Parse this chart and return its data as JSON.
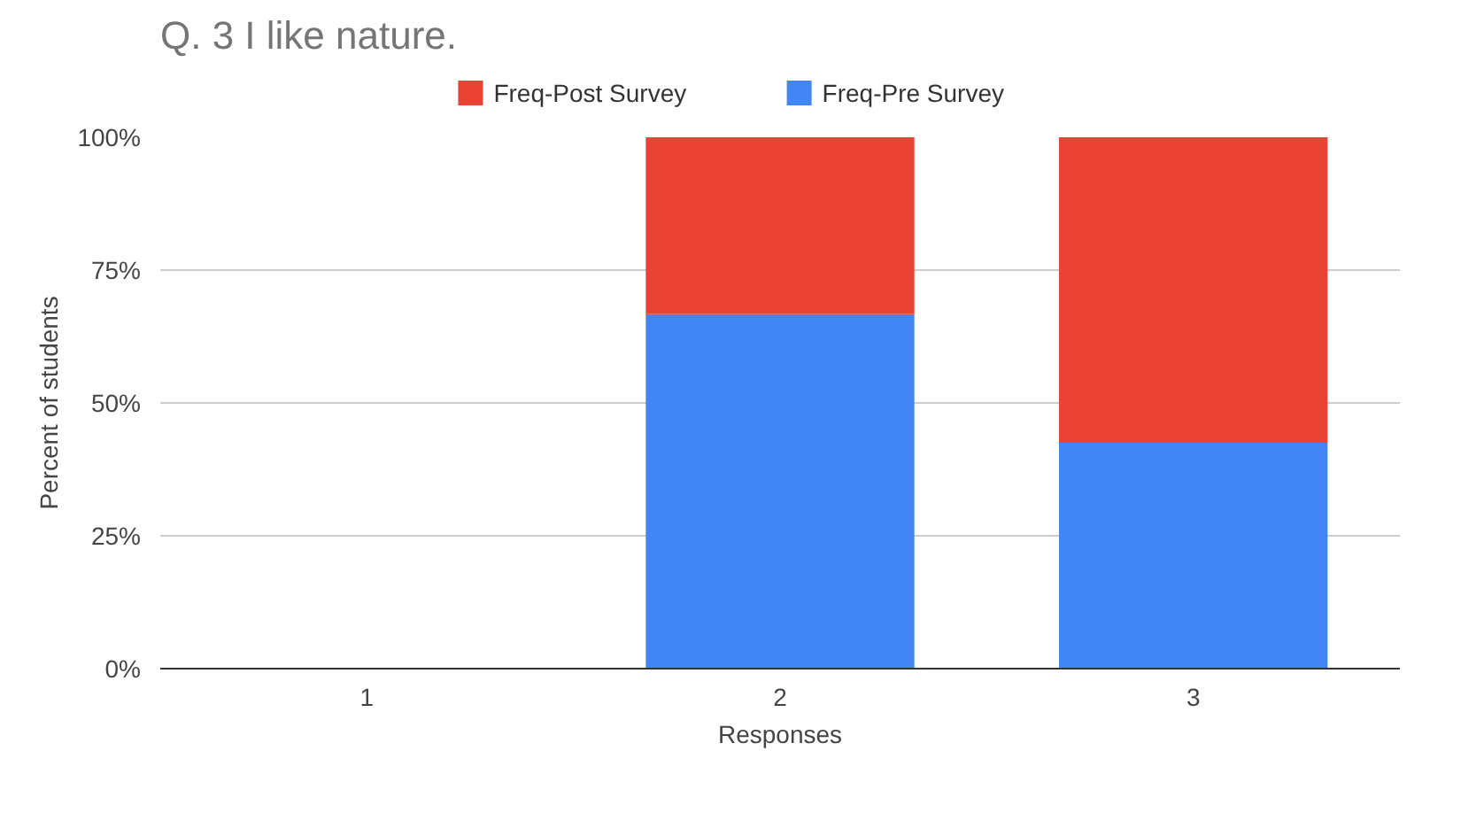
{
  "chart_data": {
    "type": "bar",
    "title": "Q. 3 I like nature.",
    "xlabel": "Responses",
    "ylabel": "Percent of students",
    "categories": [
      "1",
      "2",
      "3"
    ],
    "stacked": true,
    "series": [
      {
        "name": "Freq-Pre Survey",
        "color": "#4285f4",
        "values": [
          0,
          66.7,
          42.5
        ]
      },
      {
        "name": "Freq-Post Survey",
        "color": "#ea4335",
        "values": [
          0,
          33.3,
          57.5
        ]
      }
    ],
    "ylim": [
      0,
      100
    ],
    "yticks": [
      {
        "value": 0,
        "label": "0%"
      },
      {
        "value": 25,
        "label": "25%"
      },
      {
        "value": 50,
        "label": "50%"
      },
      {
        "value": 75,
        "label": "75%"
      },
      {
        "value": 100,
        "label": "100%"
      }
    ],
    "grid": "y",
    "legend": "top"
  }
}
